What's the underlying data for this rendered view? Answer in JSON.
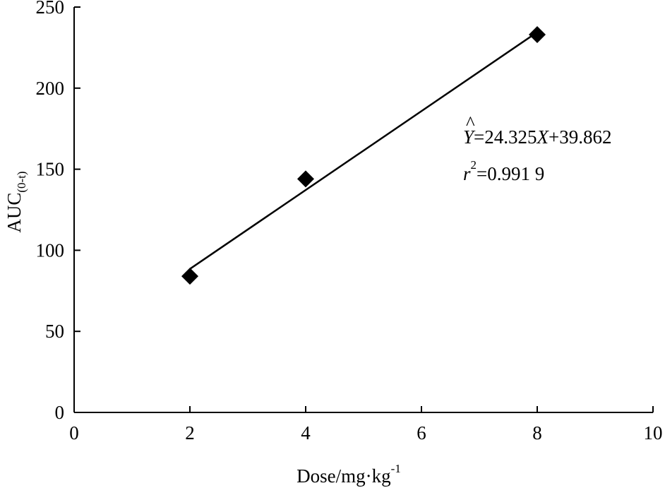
{
  "chart_data": {
    "type": "scatter",
    "xlabel": {
      "main": "Dose/mg·kg",
      "sup": "-1"
    },
    "ylabel": {
      "main": "AUC",
      "sub": "(0-t)"
    },
    "xlim": [
      0,
      10
    ],
    "ylim": [
      0,
      250
    ],
    "xticks": [
      "0",
      "2",
      "4",
      "6",
      "8",
      "10"
    ],
    "yticks": [
      "0",
      "50",
      "100",
      "150",
      "200",
      "250"
    ],
    "grid": false,
    "series": [
      {
        "marker": "diamond",
        "color": "#000000",
        "points": [
          {
            "x": 2,
            "y": 84
          },
          {
            "x": 4,
            "y": 144
          },
          {
            "x": 8,
            "y": 233
          }
        ]
      }
    ],
    "fit_line": {
      "x_range": [
        2,
        8
      ],
      "y_start": 88.5,
      "y_end": 234.5,
      "color": "#000000"
    },
    "annotations": {
      "equation": {
        "hat_symbol": "^",
        "y_var": "Y",
        "eq1": "=24.325",
        "x_var": "X",
        "eq2": "+39.862"
      },
      "r2": {
        "r_var": "r",
        "power": "2",
        "value": "=0.991 9"
      }
    }
  }
}
